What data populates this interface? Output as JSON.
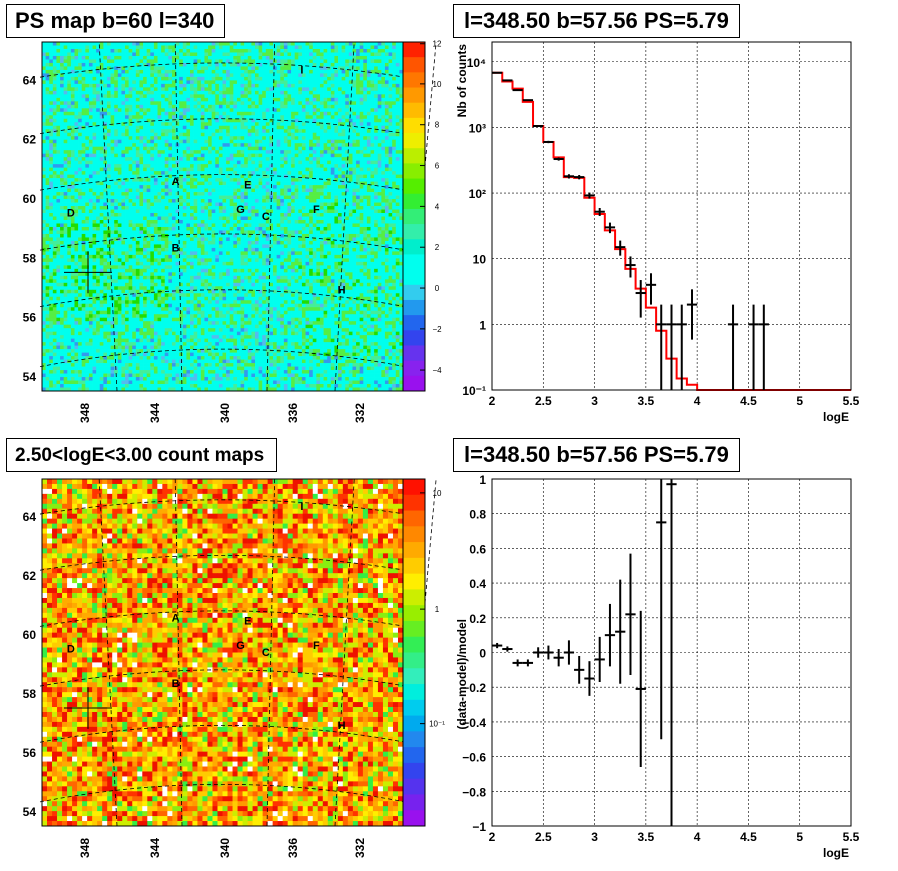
{
  "titles": {
    "ps_map": "PS map b=60 l=340",
    "spectrum": "l=348.50 b=57.56 PS=5.79",
    "count_map": "2.50<logE<3.00 count maps",
    "residual": "l=348.50 b=57.56 PS=5.79"
  },
  "chart_data": [
    {
      "type": "heatmap",
      "title": "PS map b=60 l=340",
      "x_ticks": [
        "348",
        "344",
        "340",
        "336",
        "332"
      ],
      "y_ticks": [
        "54",
        "56",
        "58",
        "60",
        "62",
        "64"
      ],
      "palette_ticks": [
        "12",
        "10",
        "8",
        "6",
        "4",
        "2",
        "0",
        "−2",
        "−4"
      ],
      "palette_range": [
        -5,
        12
      ],
      "source_labels": [
        "A",
        "B",
        "C",
        "D",
        "E",
        "F",
        "G",
        "H",
        "I"
      ]
    },
    {
      "type": "line",
      "title": "l=348.50 b=57.56 PS=5.79",
      "xlabel": "logE",
      "ylabel": "Nb of counts",
      "xlim": [
        2,
        5.5
      ],
      "ylim": [
        0.1,
        20000
      ],
      "yscale": "log",
      "grid": true,
      "x_ticks": [
        "2",
        "2.5",
        "3",
        "3.5",
        "4",
        "4.5",
        "5",
        "5.5"
      ],
      "y_ticks": [
        "10⁻¹",
        "1",
        "10",
        "10²",
        "10³",
        "10⁴"
      ],
      "series": [
        {
          "style": "data-points-with-errors",
          "color": "#000000",
          "x": [
            2.05,
            2.15,
            2.25,
            2.35,
            2.45,
            2.55,
            2.65,
            2.75,
            2.85,
            2.95,
            3.05,
            3.15,
            3.25,
            3.35,
            3.45,
            3.55,
            3.65,
            3.75,
            3.85,
            3.95,
            4.35,
            4.55,
            4.65
          ],
          "y": [
            6800,
            5200,
            3700,
            2600,
            1050,
            600,
            330,
            180,
            175,
            92,
            52,
            30,
            15,
            8,
            3,
            4,
            1,
            1,
            1,
            2,
            1,
            1,
            1
          ]
        },
        {
          "style": "model-histogram",
          "color": "#ff0000",
          "edges": [
            2.0,
            2.1,
            2.2,
            2.3,
            2.4,
            2.5,
            2.6,
            2.7,
            2.8,
            2.9,
            3.0,
            3.1,
            3.2,
            3.3,
            3.4,
            3.5,
            3.6,
            3.7,
            3.8,
            3.9,
            4.0,
            5.5
          ],
          "y": [
            6800,
            5000,
            3900,
            2450,
            1050,
            600,
            350,
            175,
            170,
            85,
            48,
            27,
            14,
            7,
            3.5,
            1.8,
            0.8,
            0.3,
            0.15,
            0.12,
            0.1
          ]
        }
      ]
    },
    {
      "type": "heatmap",
      "title": "2.50<logE<3.00 count maps",
      "x_ticks": [
        "348",
        "344",
        "340",
        "336",
        "332"
      ],
      "y_ticks": [
        "54",
        "56",
        "58",
        "60",
        "62",
        "64"
      ],
      "palette_ticks": [
        "10",
        "1",
        "10⁻¹"
      ],
      "palette_scale": "log",
      "source_labels": [
        "A",
        "B",
        "C",
        "D",
        "E",
        "F",
        "G",
        "H",
        "I"
      ]
    },
    {
      "type": "scatter",
      "title": "l=348.50 b=57.56 PS=5.79",
      "xlabel": "logE",
      "ylabel": "(data-model)/model",
      "xlim": [
        2,
        5.5
      ],
      "ylim": [
        -1,
        1
      ],
      "grid": true,
      "x_ticks": [
        "2",
        "2.5",
        "3",
        "3.5",
        "4",
        "4.5",
        "5",
        "5.5"
      ],
      "y_ticks": [
        "1",
        "0.8",
        "0.6",
        "0.4",
        "0.2",
        "0",
        "−0.2",
        "−0.4",
        "−0.6",
        "−0.8",
        "−1"
      ],
      "series": [
        {
          "style": "data-points-with-errors",
          "color": "#000000",
          "x": [
            2.05,
            2.15,
            2.25,
            2.35,
            2.45,
            2.55,
            2.65,
            2.75,
            2.85,
            2.95,
            3.05,
            3.15,
            3.25,
            3.35,
            3.45,
            3.65,
            3.75
          ],
          "y": [
            0.04,
            0.02,
            -0.06,
            -0.06,
            0.0,
            0.0,
            -0.03,
            0.0,
            -0.1,
            -0.15,
            -0.04,
            0.1,
            0.12,
            0.22,
            -0.21,
            0.75,
            0.97
          ],
          "err": [
            0.015,
            0.015,
            0.02,
            0.02,
            0.03,
            0.04,
            0.05,
            0.07,
            0.08,
            0.1,
            0.13,
            0.18,
            0.3,
            0.35,
            0.45,
            1.25,
            2.0
          ]
        }
      ]
    }
  ]
}
